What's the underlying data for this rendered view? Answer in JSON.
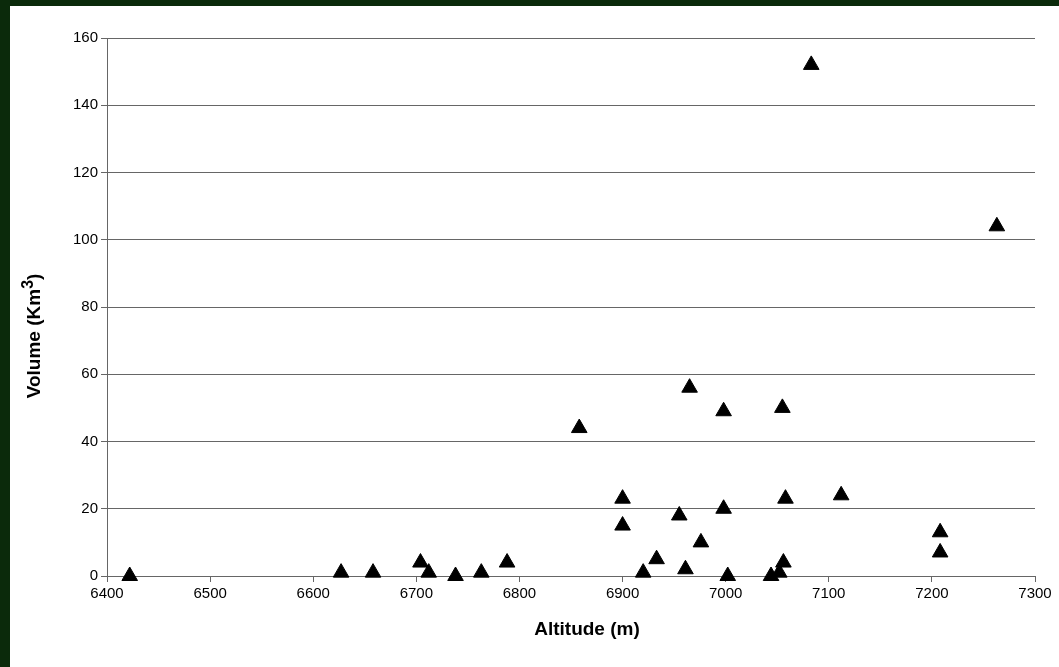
{
  "chart_data": {
    "type": "scatter",
    "xlabel": "Altitude (m)",
    "ylabel": "Volume (Km$^{3}$)",
    "x": [
      6422,
      6627,
      6658,
      6704,
      6712,
      6738,
      6763,
      6788,
      6858,
      6900,
      6900,
      6920,
      6933,
      6955,
      6961,
      6976,
      6965,
      6998,
      6998,
      7002,
      7055,
      7058,
      7056,
      7044,
      7052,
      7083,
      7112,
      7208,
      7208,
      7263
    ],
    "values": [
      0,
      1,
      1,
      4,
      1,
      0,
      1,
      4,
      44,
      23,
      15,
      1,
      5,
      18,
      2,
      10,
      56,
      49,
      20,
      0,
      50,
      23,
      4,
      0,
      1,
      152,
      24,
      13,
      7,
      104
    ],
    "color": "#000000",
    "marker": "triangle",
    "xlim": [
      6400,
      7300
    ],
    "xticks": [
      6400,
      6500,
      6600,
      6700,
      6800,
      6900,
      7000,
      7100,
      7200,
      7300
    ],
    "ylim": [
      0,
      160
    ],
    "yticks": [
      0,
      20,
      40,
      60,
      80,
      100,
      120,
      140,
      160
    ],
    "grid": "y",
    "legend": false
  }
}
